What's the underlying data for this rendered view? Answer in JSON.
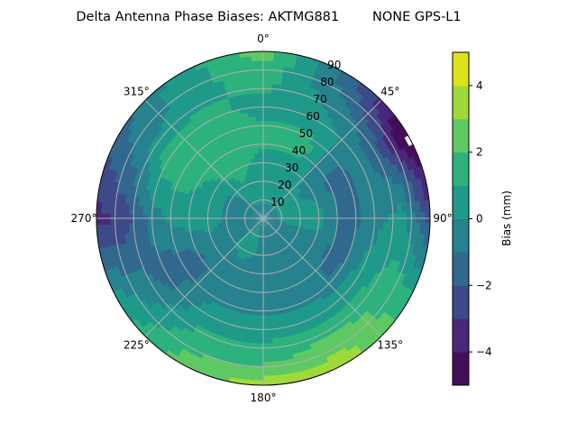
{
  "chart_data": {
    "type": "heatmap",
    "subtype": "polar-filled-contour",
    "title": "Delta Antenna Phase Biases: AKTMG881        NONE GPS-L1",
    "colorbar_label": "Bias (mm)",
    "colormap": "viridis",
    "levels": [
      -5,
      -4,
      -3,
      -2,
      -1,
      0,
      1,
      2,
      3,
      4,
      5
    ],
    "level_colors": [
      "#440f5a",
      "#482878",
      "#3e4989",
      "#31688e",
      "#26828e",
      "#1f9a8a",
      "#2db27d",
      "#5ec962",
      "#9fda3a",
      "#dde318"
    ],
    "colorbar_ticks": [
      "4",
      "2",
      "0",
      "−2",
      "−4"
    ],
    "colorbar_tick_values": [
      4,
      2,
      0,
      -2,
      -4
    ],
    "clim": [
      -5,
      5
    ],
    "theta_zero": "top",
    "theta_direction": "clockwise",
    "theta_tick_labels": [
      "0°",
      "45°",
      "90°",
      "135°",
      "180°",
      "225°",
      "270°",
      "315°"
    ],
    "r_tick_labels": [
      "10",
      "20",
      "30",
      "40",
      "50",
      "60",
      "70",
      "80",
      "90"
    ],
    "rlim": [
      0,
      90
    ],
    "grid": true,
    "azimuth": [
      0,
      30,
      60,
      90,
      120,
      150,
      180,
      210,
      240,
      270,
      300,
      330
    ],
    "zenith": [
      0,
      15,
      30,
      45,
      60,
      75,
      90
    ],
    "values": [
      [
        -0.5,
        0.5,
        0.5,
        1.5,
        0.5,
        1.5,
        2.5
      ],
      [
        -0.5,
        0.5,
        0.5,
        1.5,
        0.5,
        -0.5,
        -1.5
      ],
      [
        -0.5,
        0.5,
        -0.5,
        -1.5,
        -0.5,
        -2.5,
        -5.5
      ],
      [
        -0.5,
        0.5,
        0.5,
        -1.5,
        -0.5,
        0.5,
        -2.5
      ],
      [
        -0.5,
        -0.5,
        -0.5,
        -1.5,
        0.5,
        1.5,
        1.5
      ],
      [
        -0.5,
        -0.5,
        -0.5,
        -0.5,
        0.5,
        2.5,
        3.5
      ],
      [
        -0.5,
        -0.5,
        -0.5,
        -0.5,
        0.5,
        1.5,
        3.5
      ],
      [
        -0.5,
        1.0,
        -0.5,
        -0.5,
        0.5,
        1.5,
        2.5
      ],
      [
        -0.5,
        -0.5,
        -0.5,
        -1.5,
        -1.5,
        -0.5,
        0.5
      ],
      [
        -0.5,
        -0.5,
        0.5,
        0.5,
        -0.5,
        -2.5,
        -3.5
      ],
      [
        -0.5,
        -0.5,
        0.5,
        1.5,
        1.5,
        -0.5,
        -1.5
      ],
      [
        -0.5,
        0.5,
        1.5,
        1.5,
        1.5,
        0.5,
        0.5
      ]
    ]
  }
}
